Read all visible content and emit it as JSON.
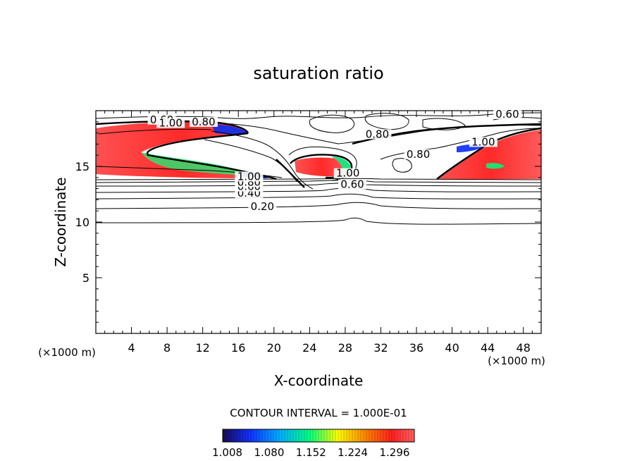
{
  "chart_data": {
    "type": "contour",
    "title": "saturation ratio",
    "xlabel": "X-coordinate",
    "ylabel": "Z-coordinate",
    "x_unit": "(×1000 m)",
    "z_unit": "(×1000 m)",
    "xlim": [
      0,
      50
    ],
    "ylim": [
      0,
      20
    ],
    "x_ticks": [
      "4",
      "8",
      "12",
      "16",
      "20",
      "24",
      "28",
      "32",
      "36",
      "40",
      "44",
      "48"
    ],
    "y_ticks": [
      "5",
      "10",
      "15"
    ],
    "contour_interval_text": "CONTOUR INTERVAL = 1.000E-01",
    "colorbar_ticks": [
      "1.008",
      "1.080",
      "1.152",
      "1.224",
      "1.296"
    ],
    "colorbar_range": [
      1.0,
      1.33
    ],
    "colormap": [
      "#1a0a5a",
      "#1030ff",
      "#00b0ff",
      "#00ff80",
      "#ffff00",
      "#ff8000",
      "#ff2020",
      "#ff6060"
    ],
    "contour_labels": [
      {
        "text": "0.20",
        "x": 18.7,
        "z": 11.2
      },
      {
        "text": "0.40",
        "x": 17.2,
        "z": 12.4
      },
      {
        "text": "0.60",
        "x": 17.2,
        "z": 13.0
      },
      {
        "text": "0.80",
        "x": 17.2,
        "z": 13.4
      },
      {
        "text": "1.00",
        "x": 17.2,
        "z": 13.9
      },
      {
        "text": "1.00",
        "x": 28.3,
        "z": 14.2
      },
      {
        "text": "0.60",
        "x": 28.8,
        "z": 13.2
      },
      {
        "text": "0.80",
        "x": 31.6,
        "z": 17.7
      },
      {
        "text": "0.80",
        "x": 36.2,
        "z": 15.9
      },
      {
        "text": "0.60",
        "x": 46.2,
        "z": 19.5
      },
      {
        "text": "1.00",
        "x": 43.5,
        "z": 17.0
      },
      {
        "text": "0.60",
        "x": 7.4,
        "z": 19.0
      },
      {
        "text": "1.00",
        "x": 8.4,
        "z": 18.7
      },
      {
        "text": "0.80",
        "x": 12.1,
        "z": 18.8
      }
    ]
  }
}
